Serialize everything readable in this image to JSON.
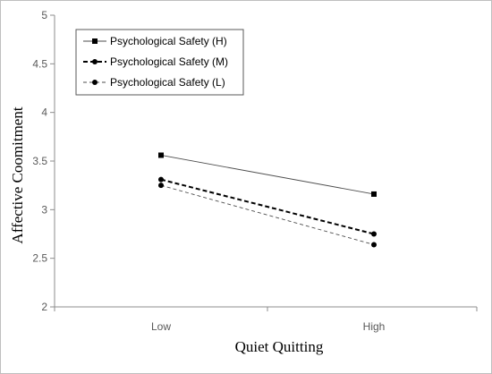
{
  "chart_data": {
    "type": "line",
    "title": "",
    "xlabel": "Quiet Quitting",
    "ylabel": "Affective Coomitment",
    "categories": [
      "Low",
      "High"
    ],
    "ylim": [
      2,
      5
    ],
    "yticks": [
      "2",
      "2.5",
      "3",
      "3.5",
      "4",
      "4.5",
      "5"
    ],
    "grid": false,
    "legend_position": "top-left",
    "series": [
      {
        "name": "Psychological Safety (H)",
        "values": [
          3.56,
          3.16
        ],
        "marker": "square",
        "line": "solid",
        "color": "#000000"
      },
      {
        "name": "Psychological Safety (M)",
        "values": [
          3.31,
          2.75
        ],
        "marker": "circle",
        "line": "dashed-bold",
        "color": "#000000"
      },
      {
        "name": "Psychological Safety (L)",
        "values": [
          3.25,
          2.64
        ],
        "marker": "circle",
        "line": "dashed-thin",
        "color": "#000000"
      }
    ]
  }
}
